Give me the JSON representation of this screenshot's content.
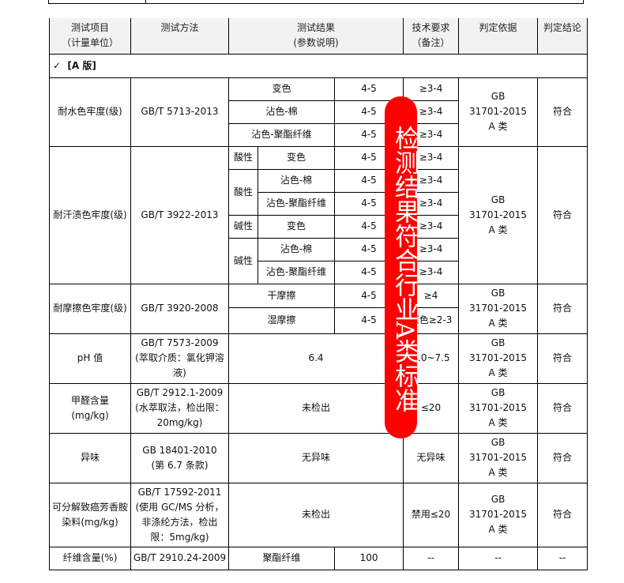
{
  "header": {
    "item": "测试项目",
    "item_unit": "（计量单位）",
    "method": "测试方法",
    "result": "测试结果",
    "result_note": "(参数说明)",
    "req": "技术要求",
    "req_note": "（备注）",
    "basis": "判定依据",
    "conclusion": "判定结论"
  },
  "section": {
    "check_icon": "✓",
    "label": "[A 版]"
  },
  "basis_text": {
    "l1": "GB",
    "l2": "31701-2015",
    "l3": "A 类"
  },
  "pass": "符合",
  "water": {
    "item": "耐水色牢度(级)",
    "method": "GB/T 5713-2013",
    "rows": [
      {
        "name": "变色",
        "value": "4-5",
        "req": "≥3-4"
      },
      {
        "name": "沾色-棉",
        "value": "4-5",
        "req": "≥3-4"
      },
      {
        "name": "沾色-聚酯纤维",
        "value": "4-5",
        "req": "≥3-4"
      }
    ]
  },
  "sweat": {
    "item": "耐汗渍色牢度(级)",
    "method": "GB/T 3922-2013",
    "acid": "酸性",
    "alkali": "碱性",
    "rows": [
      {
        "name": "变色",
        "value": "4-5",
        "req": "≥3-4"
      },
      {
        "name": "沾色-棉",
        "value": "4-5",
        "req": "≥3-4"
      },
      {
        "name": "沾色-聚酯纤维",
        "value": "4-5",
        "req": "≥3-4"
      },
      {
        "name": "变色",
        "value": "4-5",
        "req": "≥3-4"
      },
      {
        "name": "沾色-棉",
        "value": "4-5",
        "req": "≥3-4"
      },
      {
        "name": "沾色-聚酯纤维",
        "value": "4-5",
        "req": "≥3-4"
      }
    ]
  },
  "rub": {
    "item": "耐摩擦色牢度(级)",
    "method": "GB/T 3920-2008",
    "rows": [
      {
        "name": "干摩擦",
        "value": "4-5",
        "req": "≥4"
      },
      {
        "name": "湿摩擦",
        "value": "4-5",
        "req": "深色≥2-3"
      }
    ]
  },
  "ph": {
    "item": "pH 值",
    "method_l1": "GB/T 7573-2009",
    "method_l2": "(萃取介质：氯化钾溶液)",
    "result": "6.4",
    "req": "4.0~7.5"
  },
  "formaldehyde": {
    "item": "甲醛含量",
    "item_unit": "(mg/kg)",
    "method_l1": "GB/T 2912.1-2009",
    "method_l2": "(水萃取法，检出限：20mg/kg)",
    "result": "未检出",
    "req": "≤20"
  },
  "odor": {
    "item": "异味",
    "method_l1": "GB 18401-2010",
    "method_l2": "(第 6.7 条款)",
    "result": "无异味",
    "req": "无异味"
  },
  "amine": {
    "item": "可分解致癌芳香胺染料(mg/kg)",
    "method_l1": "GB/T 17592-2011",
    "method_l2": "(使用 GC/MS 分析，非涤纶方法，检出限：5mg/kg)",
    "result": "未检出",
    "req": "禁用≤20"
  },
  "fiber": {
    "item": "纤维含量(%)",
    "method": "GB/T 2910.24-2009",
    "name": "聚酯纤维",
    "value": "100",
    "req": "--",
    "basis": "--",
    "conclusion": "--"
  },
  "banner": {
    "text": "检测结果符合行业A类标准",
    "color": "#ff0000"
  }
}
